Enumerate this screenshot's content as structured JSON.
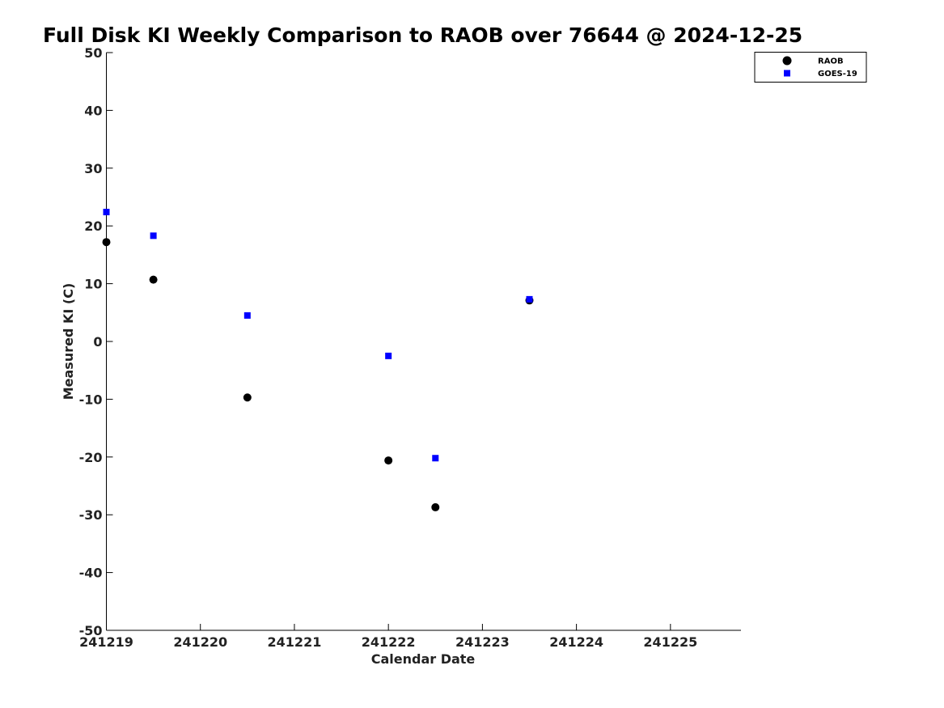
{
  "chart_data": {
    "type": "scatter",
    "title": "Full Disk KI Weekly Comparison to RAOB over 76644 @ 2024-12-25",
    "xlabel": "Calendar Date",
    "ylabel": "Measured KI (C)",
    "xlim": [
      "2024-12-19",
      "2024-12-25 18:00"
    ],
    "ylim": [
      -50,
      50
    ],
    "x_ticks": [
      "241219",
      "241220",
      "241221",
      "241222",
      "241223",
      "241224",
      "241225"
    ],
    "x_tick_dates": [
      "2024-12-19",
      "2024-12-20",
      "2024-12-21",
      "2024-12-22",
      "2024-12-23",
      "2024-12-24",
      "2024-12-25"
    ],
    "y_ticks": [
      50,
      40,
      30,
      20,
      10,
      0,
      -10,
      -20,
      -30,
      -40,
      -50
    ],
    "grid": false,
    "legend_position": "top-right",
    "series": [
      {
        "name": "RAOB",
        "marker": "circle",
        "color": "#000000",
        "points": [
          {
            "x": "2024-12-19 00:00",
            "y": 17.2
          },
          {
            "x": "2024-12-19 12:00",
            "y": 10.7
          },
          {
            "x": "2024-12-20 12:00",
            "y": -9.7
          },
          {
            "x": "2024-12-22 00:00",
            "y": -20.6
          },
          {
            "x": "2024-12-22 12:00",
            "y": -28.7
          },
          {
            "x": "2024-12-23 12:00",
            "y": 7.1
          }
        ]
      },
      {
        "name": "GOES-19",
        "marker": "square",
        "color": "#0000ff",
        "points": [
          {
            "x": "2024-12-19 00:00",
            "y": 22.4
          },
          {
            "x": "2024-12-19 12:00",
            "y": 18.3
          },
          {
            "x": "2024-12-20 12:00",
            "y": 4.5
          },
          {
            "x": "2024-12-22 00:00",
            "y": -2.5
          },
          {
            "x": "2024-12-22 12:00",
            "y": -20.2
          },
          {
            "x": "2024-12-23 12:00",
            "y": 7.3
          }
        ]
      }
    ]
  }
}
